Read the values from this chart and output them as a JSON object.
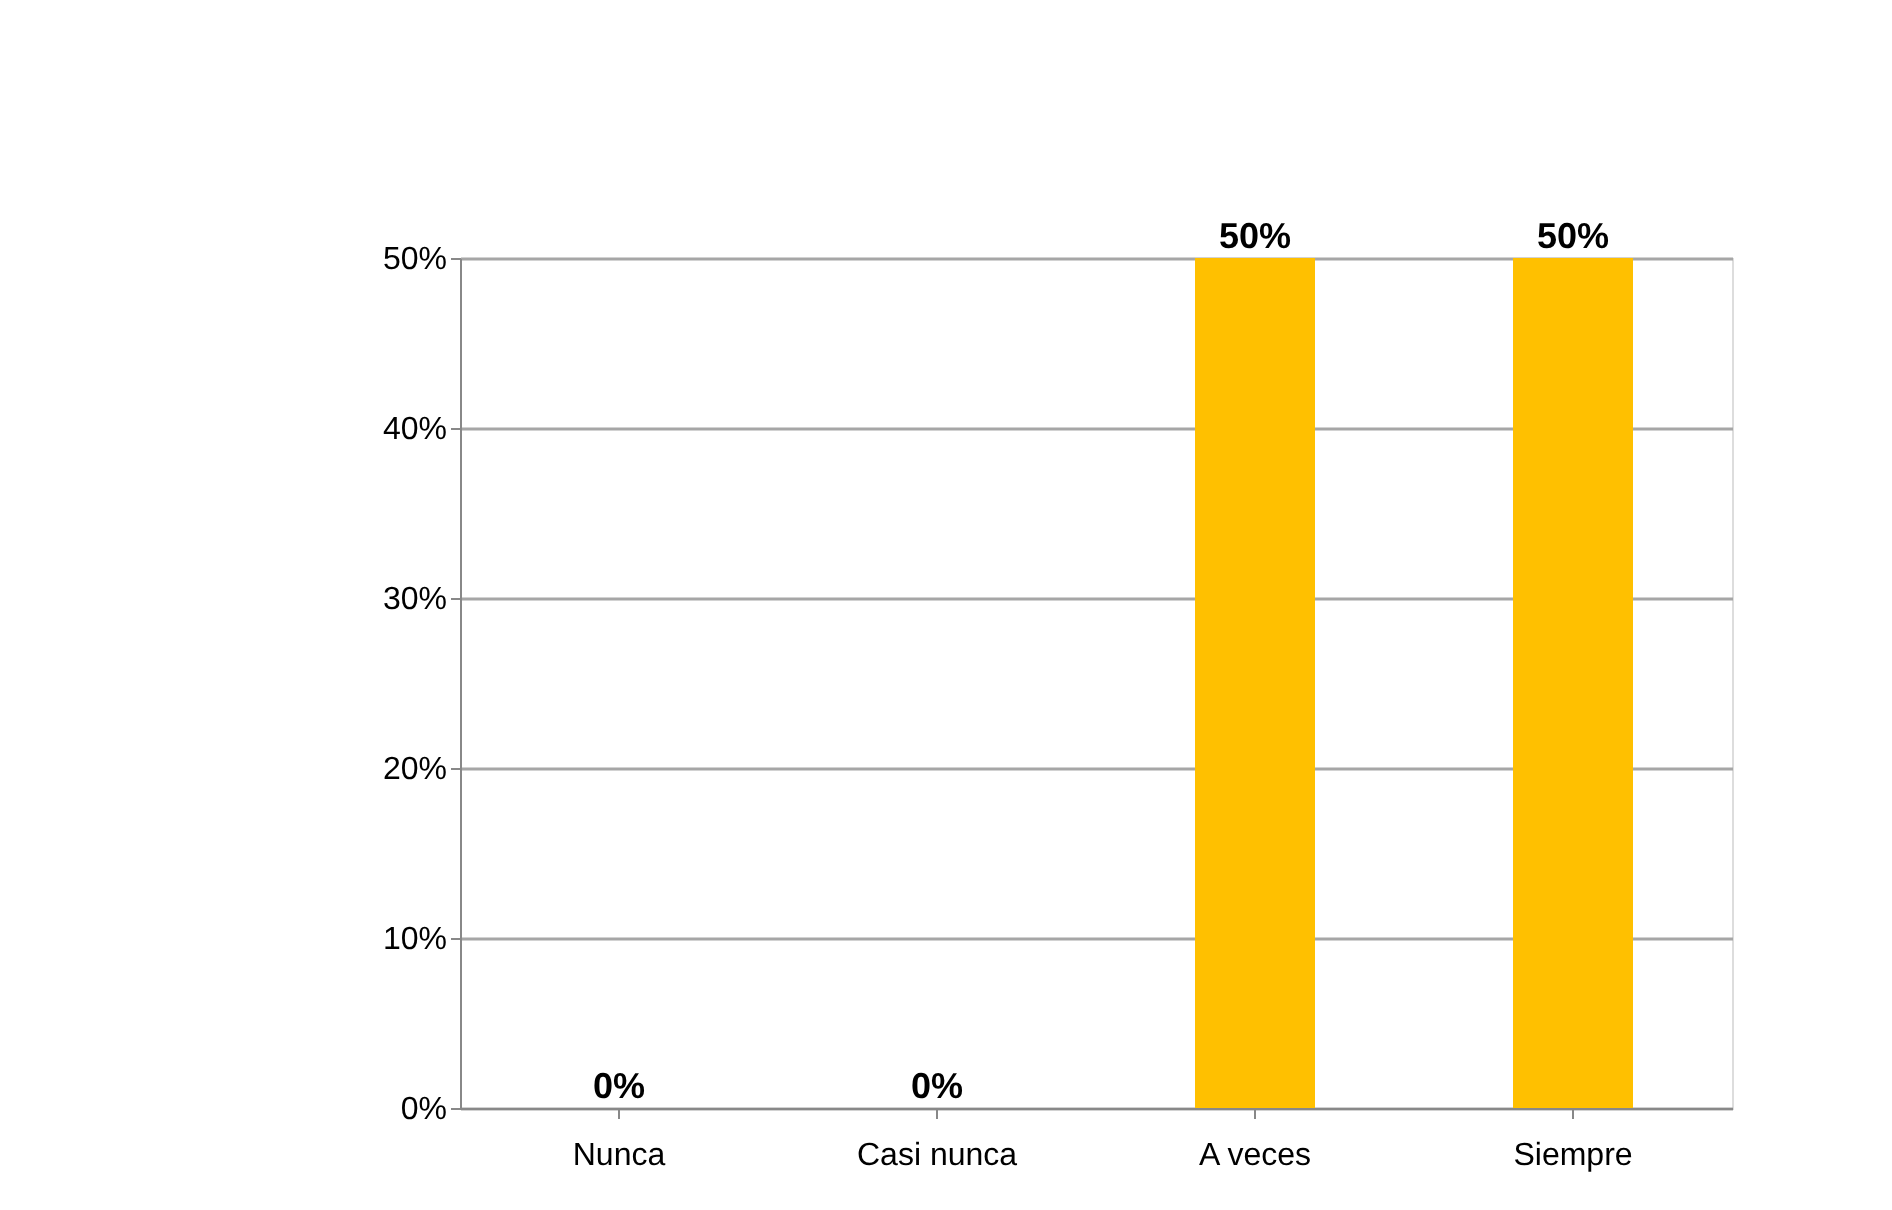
{
  "chart_data": {
    "type": "bar",
    "categories": [
      "Nunca",
      "Casi nunca",
      "A veces",
      "Siempre"
    ],
    "values": [
      0,
      0,
      50,
      50
    ],
    "color": "#ffc000",
    "value_labels": [
      "0%",
      "0%",
      "50%",
      "50%"
    ],
    "ylim": [
      0,
      50
    ],
    "yticks": [
      {
        "value": 0,
        "label": "0%"
      },
      {
        "value": 10,
        "label": "10%"
      },
      {
        "value": 20,
        "label": "20%"
      },
      {
        "value": 30,
        "label": "30%"
      },
      {
        "value": 40,
        "label": "40%"
      },
      {
        "value": 50,
        "label": "50%"
      }
    ],
    "grid": "y"
  }
}
